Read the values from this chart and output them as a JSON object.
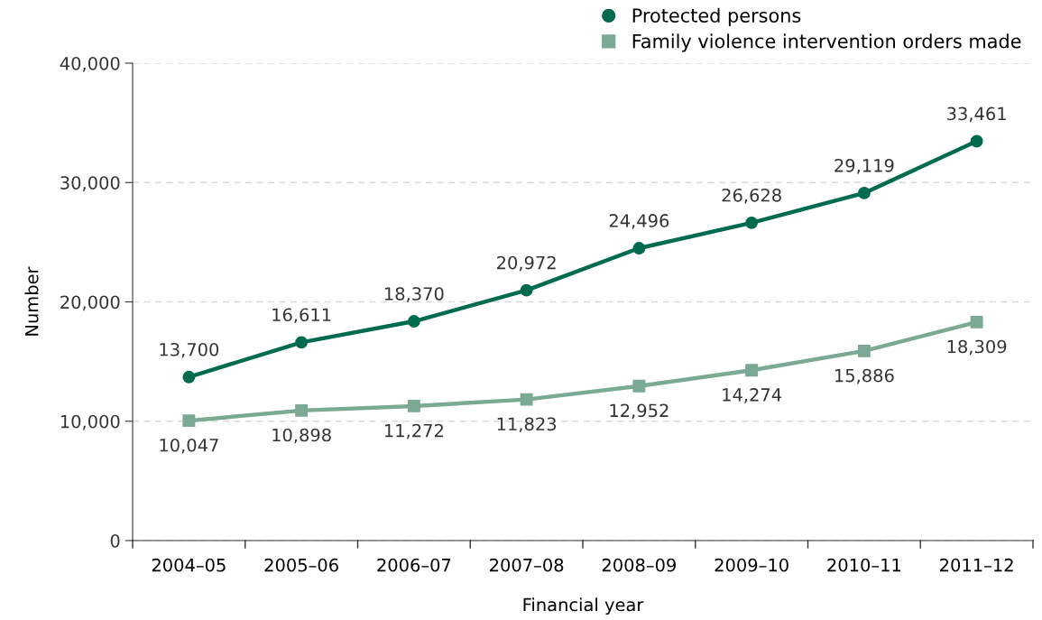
{
  "chart_data": {
    "type": "line",
    "xlabel": "Financial year",
    "ylabel": "Number",
    "categories": [
      "2004–05",
      "2005–06",
      "2006–07",
      "2007–08",
      "2008–09",
      "2009–10",
      "2010–11",
      "2011–12"
    ],
    "series": [
      {
        "name": "Protected persons",
        "color": "#006b4f",
        "marker": "circle",
        "values": [
          13700,
          16611,
          18370,
          20972,
          24496,
          26628,
          29119,
          33461
        ],
        "value_labels": [
          "13,700",
          "16,611",
          "18,370",
          "20,972",
          "24,496",
          "26,628",
          "29,119",
          "33,461"
        ]
      },
      {
        "name": "Family violence intervention orders made",
        "color": "#7aa994",
        "marker": "square",
        "values": [
          10047,
          10898,
          11272,
          11823,
          12952,
          14274,
          15886,
          18309
        ],
        "value_labels": [
          "10,047",
          "10,898",
          "11,272",
          "11,823",
          "12,952",
          "14,274",
          "15,886",
          "18,309"
        ]
      }
    ],
    "ylim": [
      0,
      40000
    ],
    "yticks": [
      {
        "value": 0,
        "label": "0"
      },
      {
        "value": 10000,
        "label": "10,000"
      },
      {
        "value": 20000,
        "label": "20,000"
      },
      {
        "value": 30000,
        "label": "30,000"
      },
      {
        "value": 40000,
        "label": "40,000"
      }
    ],
    "grid": "y",
    "legend": "top right",
    "line_style": "solid"
  }
}
